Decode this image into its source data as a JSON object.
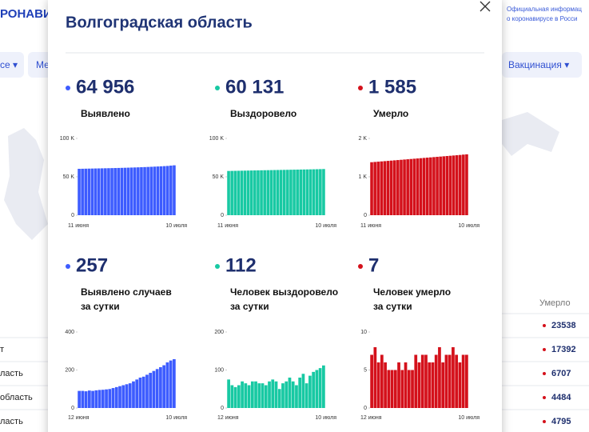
{
  "background": {
    "brand": "РОНАВИ",
    "info": [
      "Официальная информац",
      "о коронавирусе в Росси"
    ],
    "menu": [
      "се ▾",
      "Ме",
      "Вакцинация ▾"
    ],
    "table": {
      "header": "Умерло",
      "left_labels": [
        "т",
        "ласть",
        "область",
        "ласть"
      ],
      "deaths": [
        23538,
        17392,
        6707,
        4484,
        4795
      ]
    }
  },
  "modal": {
    "title": "Волгоградская область",
    "stats": [
      {
        "value": "64 956",
        "lines": [
          "Выявлено"
        ]
      },
      {
        "value": "60 131",
        "lines": [
          "Выздоровело"
        ]
      },
      {
        "value": "1 585",
        "lines": [
          "Умерло"
        ]
      },
      {
        "value": "257",
        "lines": [
          "Выявлено случаев",
          "за сутки"
        ]
      },
      {
        "value": "112",
        "lines": [
          "Человек выздоровело",
          "за сутки"
        ]
      },
      {
        "value": "7",
        "lines": [
          "Человек умерло",
          "за сутки"
        ]
      }
    ]
  },
  "chart_data": [
    {
      "type": "bar",
      "color": "#3d5cff",
      "categories": [
        "11 июня",
        null,
        null,
        null,
        null,
        null,
        null,
        null,
        null,
        null,
        null,
        null,
        null,
        null,
        null,
        null,
        null,
        null,
        null,
        null,
        null,
        null,
        null,
        null,
        null,
        null,
        null,
        null,
        null,
        "10 июля"
      ],
      "values": [
        60400,
        60490,
        60580,
        60670,
        60760,
        60850,
        60940,
        61030,
        61120,
        61210,
        61310,
        61420,
        61530,
        61650,
        61770,
        61900,
        62040,
        62180,
        62330,
        62490,
        62660,
        62840,
        63030,
        63230,
        63440,
        63660,
        63900,
        64150,
        64560,
        64956
      ],
      "ylim": [
        0,
        100000
      ],
      "yticks": [
        0,
        {
          "value": 50000,
          "label": "50 K"
        },
        {
          "value": 100000,
          "label": "100 K"
        }
      ]
    },
    {
      "type": "bar",
      "color": "#18c9a3",
      "categories": [
        "11 июня",
        null,
        null,
        null,
        null,
        null,
        null,
        null,
        null,
        null,
        null,
        null,
        null,
        null,
        null,
        null,
        null,
        null,
        null,
        null,
        null,
        null,
        null,
        null,
        null,
        null,
        null,
        null,
        null,
        "10 июля"
      ],
      "values": [
        57600,
        57690,
        57780,
        57870,
        57960,
        58050,
        58140,
        58230,
        58320,
        58410,
        58490,
        58570,
        58650,
        58730,
        58810,
        58890,
        58970,
        59050,
        59130,
        59210,
        59290,
        59370,
        59450,
        59530,
        59610,
        59700,
        59790,
        59880,
        60010,
        60131
      ],
      "ylim": [
        0,
        100000
      ],
      "yticks": [
        0,
        {
          "value": 50000,
          "label": "50 K"
        },
        {
          "value": 100000,
          "label": "100 K"
        }
      ]
    },
    {
      "type": "bar",
      "color": "#d4111b",
      "categories": [
        "11 июня",
        null,
        null,
        null,
        null,
        null,
        null,
        null,
        null,
        null,
        null,
        null,
        null,
        null,
        null,
        null,
        null,
        null,
        null,
        null,
        null,
        null,
        null,
        null,
        null,
        null,
        null,
        null,
        null,
        "10 июля"
      ],
      "values": [
        1380,
        1387,
        1394,
        1401,
        1408,
        1415,
        1422,
        1429,
        1436,
        1443,
        1450,
        1457,
        1464,
        1471,
        1478,
        1485,
        1492,
        1499,
        1506,
        1513,
        1520,
        1527,
        1534,
        1541,
        1548,
        1555,
        1562,
        1569,
        1578,
        1585
      ],
      "ylim": [
        0,
        2000
      ],
      "yticks": [
        0,
        {
          "value": 1000,
          "label": "1 K"
        },
        {
          "value": 2000,
          "label": "2 K"
        }
      ]
    },
    {
      "type": "bar",
      "color": "#3d5cff",
      "categories": [
        "12 июня",
        null,
        null,
        null,
        null,
        null,
        null,
        null,
        null,
        null,
        null,
        null,
        null,
        null,
        null,
        null,
        null,
        null,
        null,
        null,
        null,
        null,
        null,
        null,
        null,
        null,
        null,
        null,
        "10 июля"
      ],
      "values": [
        90,
        90,
        88,
        92,
        90,
        93,
        95,
        96,
        98,
        100,
        105,
        110,
        115,
        120,
        125,
        130,
        140,
        150,
        160,
        165,
        175,
        185,
        195,
        205,
        215,
        225,
        240,
        250,
        257
      ],
      "ylim": [
        0,
        400
      ],
      "yticks": [
        0,
        200,
        400
      ]
    },
    {
      "type": "bar",
      "color": "#18c9a3",
      "categories": [
        "12 июня",
        null,
        null,
        null,
        null,
        null,
        null,
        null,
        null,
        null,
        null,
        null,
        null,
        null,
        null,
        null,
        null,
        null,
        null,
        null,
        null,
        null,
        null,
        null,
        null,
        null,
        null,
        null,
        "10 июля"
      ],
      "values": [
        75,
        60,
        55,
        60,
        70,
        65,
        60,
        70,
        70,
        65,
        65,
        60,
        70,
        75,
        70,
        50,
        65,
        70,
        80,
        70,
        60,
        80,
        90,
        65,
        85,
        95,
        100,
        105,
        112
      ],
      "ylim": [
        0,
        200
      ],
      "yticks": [
        0,
        100,
        200
      ]
    },
    {
      "type": "bar",
      "color": "#d4111b",
      "categories": [
        "12 июня",
        null,
        null,
        null,
        null,
        null,
        null,
        null,
        null,
        null,
        null,
        null,
        null,
        null,
        null,
        null,
        null,
        null,
        null,
        null,
        null,
        null,
        null,
        null,
        null,
        null,
        null,
        null,
        "10 июля"
      ],
      "values": [
        7,
        8,
        6,
        7,
        6,
        5,
        5,
        5,
        6,
        5,
        6,
        5,
        5,
        7,
        6,
        7,
        7,
        6,
        6,
        7,
        8,
        6,
        7,
        7,
        8,
        7,
        6,
        7,
        7
      ],
      "ylim": [
        0,
        10
      ],
      "yticks": [
        0,
        5,
        10
      ]
    }
  ]
}
